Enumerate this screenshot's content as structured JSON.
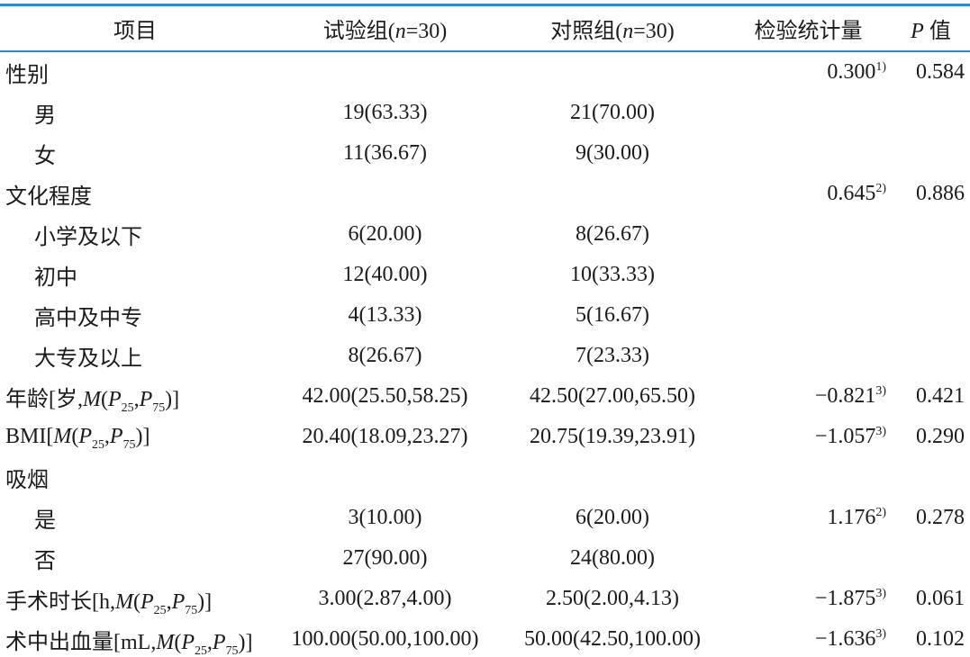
{
  "page": {
    "rule_color": "#3389c5",
    "text_color": "#1b1b1b"
  },
  "table": {
    "headers": [
      [
        {
          "t": "项目"
        }
      ],
      [
        {
          "t": "试验组("
        },
        {
          "t": "n",
          "style": "i"
        },
        {
          "t": "=30)"
        }
      ],
      [
        {
          "t": "对照组("
        },
        {
          "t": "n",
          "style": "i"
        },
        {
          "t": "=30)"
        }
      ],
      [
        {
          "t": "检验统计量"
        }
      ],
      [
        {
          "t": "P",
          "style": "i"
        },
        {
          "t": " 值"
        }
      ]
    ],
    "rows": [
      {
        "label": [
          {
            "t": "性别"
          }
        ],
        "indent": false,
        "exp": "",
        "ctrl": "",
        "stat": "0.300",
        "stat_sup": "1)",
        "p": "0.584"
      },
      {
        "label": [
          {
            "t": "男"
          }
        ],
        "indent": true,
        "exp": "19(63.33)",
        "ctrl": "21(70.00)",
        "stat": "",
        "stat_sup": "",
        "p": ""
      },
      {
        "label": [
          {
            "t": "女"
          }
        ],
        "indent": true,
        "exp": "11(36.67)",
        "ctrl": "9(30.00)",
        "stat": "",
        "stat_sup": "",
        "p": ""
      },
      {
        "label": [
          {
            "t": "文化程度"
          }
        ],
        "indent": false,
        "exp": "",
        "ctrl": "",
        "stat": "0.645",
        "stat_sup": "2)",
        "p": "0.886"
      },
      {
        "label": [
          {
            "t": "小学及以下"
          }
        ],
        "indent": true,
        "exp": "6(20.00)",
        "ctrl": "8(26.67)",
        "stat": "",
        "stat_sup": "",
        "p": ""
      },
      {
        "label": [
          {
            "t": "初中"
          }
        ],
        "indent": true,
        "exp": "12(40.00)",
        "ctrl": "10(33.33)",
        "stat": "",
        "stat_sup": "",
        "p": ""
      },
      {
        "label": [
          {
            "t": "高中及中专"
          }
        ],
        "indent": true,
        "exp": "4(13.33)",
        "ctrl": "5(16.67)",
        "stat": "",
        "stat_sup": "",
        "p": ""
      },
      {
        "label": [
          {
            "t": "大专及以上"
          }
        ],
        "indent": true,
        "exp": "8(26.67)",
        "ctrl": "7(23.33)",
        "stat": "",
        "stat_sup": "",
        "p": ""
      },
      {
        "label": [
          {
            "t": "年龄[岁,"
          },
          {
            "t": "M",
            "style": "i"
          },
          {
            "t": "("
          },
          {
            "t": "P",
            "style": "i"
          },
          {
            "t": "25",
            "style": "sub"
          },
          {
            "t": ","
          },
          {
            "t": "P",
            "style": "i"
          },
          {
            "t": "75",
            "style": "sub"
          },
          {
            "t": ")]"
          }
        ],
        "indent": false,
        "exp": "42.00(25.50,58.25)",
        "ctrl": "42.50(27.00,65.50)",
        "stat": "−0.821",
        "stat_sup": "3)",
        "p": "0.421"
      },
      {
        "label": [
          {
            "t": "BMI["
          },
          {
            "t": "M",
            "style": "i"
          },
          {
            "t": "("
          },
          {
            "t": "P",
            "style": "i"
          },
          {
            "t": "25",
            "style": "sub"
          },
          {
            "t": ","
          },
          {
            "t": "P",
            "style": "i"
          },
          {
            "t": "75",
            "style": "sub"
          },
          {
            "t": ")]"
          }
        ],
        "indent": false,
        "exp": "20.40(18.09,23.27)",
        "ctrl": "20.75(19.39,23.91)",
        "stat": "−1.057",
        "stat_sup": "3)",
        "p": "0.290"
      },
      {
        "label": [
          {
            "t": "吸烟"
          }
        ],
        "indent": false,
        "exp": "",
        "ctrl": "",
        "stat": "",
        "stat_sup": "",
        "p": ""
      },
      {
        "label": [
          {
            "t": "是"
          }
        ],
        "indent": true,
        "exp": "3(10.00)",
        "ctrl": "6(20.00)",
        "stat": "1.176",
        "stat_sup": "2)",
        "p": "0.278"
      },
      {
        "label": [
          {
            "t": "否"
          }
        ],
        "indent": true,
        "exp": "27(90.00)",
        "ctrl": "24(80.00)",
        "stat": "",
        "stat_sup": "",
        "p": ""
      },
      {
        "label": [
          {
            "t": "手术时长[h,"
          },
          {
            "t": "M",
            "style": "i"
          },
          {
            "t": "("
          },
          {
            "t": "P",
            "style": "i"
          },
          {
            "t": "25",
            "style": "sub"
          },
          {
            "t": ","
          },
          {
            "t": "P",
            "style": "i"
          },
          {
            "t": "75",
            "style": "sub"
          },
          {
            "t": ")]"
          }
        ],
        "indent": false,
        "exp": "3.00(2.87,4.00)",
        "ctrl": "2.50(2.00,4.13)",
        "stat": "−1.875",
        "stat_sup": "3)",
        "p": "0.061"
      },
      {
        "label": [
          {
            "t": "术中出血量[mL,"
          },
          {
            "t": "M",
            "style": "i"
          },
          {
            "t": "("
          },
          {
            "t": "P",
            "style": "i"
          },
          {
            "t": "25",
            "style": "sub"
          },
          {
            "t": ","
          },
          {
            "t": "P",
            "style": "i"
          },
          {
            "t": "75",
            "style": "sub"
          },
          {
            "t": ")]"
          }
        ],
        "indent": false,
        "exp": "100.00(50.00,100.00)",
        "ctrl": "50.00(42.50,100.00)",
        "stat": "−1.636",
        "stat_sup": "3)",
        "p": "0.102"
      }
    ]
  }
}
